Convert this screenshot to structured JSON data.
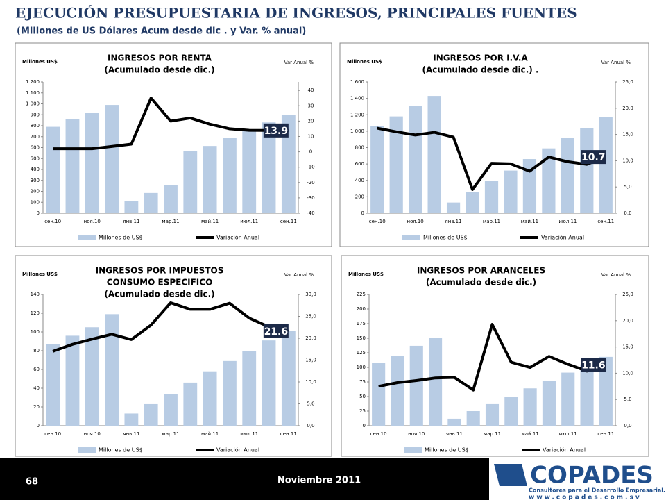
{
  "header": {
    "title": "EJECUCIÓN PRESUPUESTARIA DE INGRESOS, PRINCIPALES FUENTES",
    "subtitle": "(Millones de US Dólares Acum desde dic . y Var. % anual)"
  },
  "footer": {
    "page": "68",
    "date": "Noviembre 2011",
    "logo": "COPADES",
    "tagline": "Consultores para el Desarrollo Empresarial.",
    "web": "www.copades.com.sv"
  },
  "chart_data": [
    {
      "type": "bar-line",
      "title": [
        "INGRESOS POR RENTA",
        "(Acumulado desde dic.)"
      ],
      "ylabel": "Millones US$",
      "y2label": "Var Anual %",
      "categories": [
        "сен.10",
        null,
        "ноя.10",
        null,
        "янв.11",
        null,
        "мар.11",
        null,
        "май.11",
        null,
        "июл.11",
        null,
        "сен.11"
      ],
      "series": [
        {
          "name": "Millones de US$",
          "color": "#b8cce4",
          "values": [
            790,
            860,
            920,
            990,
            110,
            185,
            260,
            565,
            615,
            690,
            750,
            830,
            900
          ]
        },
        {
          "name": "Variación Anual",
          "color": "#000000",
          "axis": "y2",
          "values": [
            2,
            2,
            2,
            3.5,
            5,
            35,
            20,
            22,
            18,
            15,
            14,
            13.9,
            13.9
          ]
        }
      ],
      "ylim": [
        0,
        1200
      ],
      "yticks": [
        0,
        100,
        200,
        300,
        400,
        500,
        600,
        700,
        800,
        900,
        {
          "value": 1000,
          "label": "1 000"
        },
        {
          "value": 1100,
          "label": "1 100"
        },
        {
          "value": 1200,
          "label": "1 200"
        }
      ],
      "y2lim": [
        -40,
        45.5
      ],
      "y2ticks": [
        -40,
        -30,
        -20,
        -10,
        0,
        10,
        20,
        30,
        40
      ]
    },
    {
      "type": "bar-line",
      "title": [
        "INGRESOS POR  I.V.A",
        "(Acumulado desde dic.) ."
      ],
      "ylabel": "Millones US$",
      "y2label": "Var Anual %",
      "categories": [
        "сен.10",
        null,
        "ноя.10",
        null,
        "янв.11",
        null,
        "мар.11",
        null,
        "май.11",
        null,
        "июл.11",
        null,
        "сен.11"
      ],
      "series": [
        {
          "name": "Millones de US$",
          "color": "#b8cce4",
          "values": [
            1060,
            1180,
            1310,
            1430,
            130,
            255,
            390,
            520,
            660,
            790,
            915,
            1040,
            1170
          ]
        },
        {
          "name": "Variación Anual",
          "color": "#000000",
          "axis": "y2",
          "values": [
            16.2,
            15.5,
            14.9,
            15.4,
            14.5,
            4.5,
            9.5,
            9.4,
            8,
            10.7,
            9.8,
            9.3,
            10.7
          ]
        }
      ],
      "ylim": [
        0,
        1600
      ],
      "yticks": [
        0,
        200,
        400,
        600,
        800,
        {
          "value": 1000,
          "label": "1 000"
        },
        {
          "value": 1200,
          "label": "1 200"
        },
        {
          "value": 1400,
          "label": "1 400"
        },
        {
          "value": 1600,
          "label": "1 600"
        }
      ],
      "y2lim": [
        0,
        25
      ],
      "y2ticks": [
        {
          "value": 0,
          "label": "0,0"
        },
        {
          "value": 5,
          "label": "5,0"
        },
        {
          "value": 10,
          "label": "10,0"
        },
        {
          "value": 15,
          "label": "15,0"
        },
        {
          "value": 20,
          "label": "20,0"
        },
        {
          "value": 25,
          "label": "25,0"
        }
      ]
    },
    {
      "type": "bar-line",
      "title": [
        "INGRESOS POR IMPUESTOS",
        "CONSUMO ESPECIFICO",
        "(Acumulado desde dic.)"
      ],
      "ylabel": "Millones US$",
      "y2label": "Var Anual %",
      "categories": [
        "сен.10",
        null,
        "ноя.10",
        null,
        "янв.11",
        null,
        "мар.11",
        null,
        "май.11",
        null,
        "июл.11",
        null,
        "сен.11"
      ],
      "series": [
        {
          "name": "Millones de US$",
          "color": "#b8cce4",
          "values": [
            87,
            96,
            105,
            119,
            13,
            23,
            34,
            46,
            58,
            69,
            80,
            91,
            101
          ]
        },
        {
          "name": "Variación Anual",
          "color": "#000000",
          "axis": "y2",
          "values": [
            17,
            18.6,
            19.8,
            20.9,
            19.7,
            23,
            28.1,
            26.6,
            26.6,
            28,
            24.6,
            22.6,
            21.6
          ]
        }
      ],
      "ylim": [
        0,
        140
      ],
      "yticks": [
        0,
        20,
        40,
        60,
        80,
        100,
        120,
        140
      ],
      "y2lim": [
        0,
        30
      ],
      "y2ticks": [
        {
          "value": 0,
          "label": "0,0"
        },
        {
          "value": 5,
          "label": "5,0"
        },
        {
          "value": 10,
          "label": "10,0"
        },
        {
          "value": 15,
          "label": "15,0"
        },
        {
          "value": 20,
          "label": "20,0"
        },
        {
          "value": 25,
          "label": "25,0"
        },
        {
          "value": 30,
          "label": "30,0"
        }
      ]
    },
    {
      "type": "bar-line",
      "title": [
        "INGRESOS POR ARANCELES",
        "(Acumulado desde dic.)"
      ],
      "ylabel": "Millones US$",
      "y2label": "Var Anual %",
      "categories": [
        "сен.10",
        null,
        "ноя.10",
        null,
        "янв.11",
        null,
        "мар.11",
        null,
        "май.11",
        null,
        "июл.11",
        null,
        "сен.11"
      ],
      "series": [
        {
          "name": "Millones de US$",
          "color": "#b8cce4",
          "values": [
            108,
            120,
            137,
            150,
            12,
            25,
            37,
            49,
            64,
            77,
            91,
            105,
            118
          ]
        },
        {
          "name": "Variación Anual",
          "color": "#000000",
          "axis": "y2",
          "values": [
            7.5,
            8.2,
            8.6,
            9.1,
            9.2,
            6.8,
            19.3,
            12.1,
            11.1,
            13.2,
            11.7,
            10.4,
            11.6
          ]
        }
      ],
      "ylim": [
        0,
        225
      ],
      "yticks": [
        0,
        25,
        50,
        75,
        100,
        125,
        150,
        175,
        200,
        225
      ],
      "y2lim": [
        0,
        25
      ],
      "y2ticks": [
        {
          "value": 0,
          "label": "0,0"
        },
        {
          "value": 5,
          "label": "5,0"
        },
        {
          "value": 10,
          "label": "10,0"
        },
        {
          "value": 15,
          "label": "15,0"
        },
        {
          "value": 20,
          "label": "20,0"
        },
        {
          "value": 25,
          "label": "25,0"
        }
      ]
    }
  ]
}
